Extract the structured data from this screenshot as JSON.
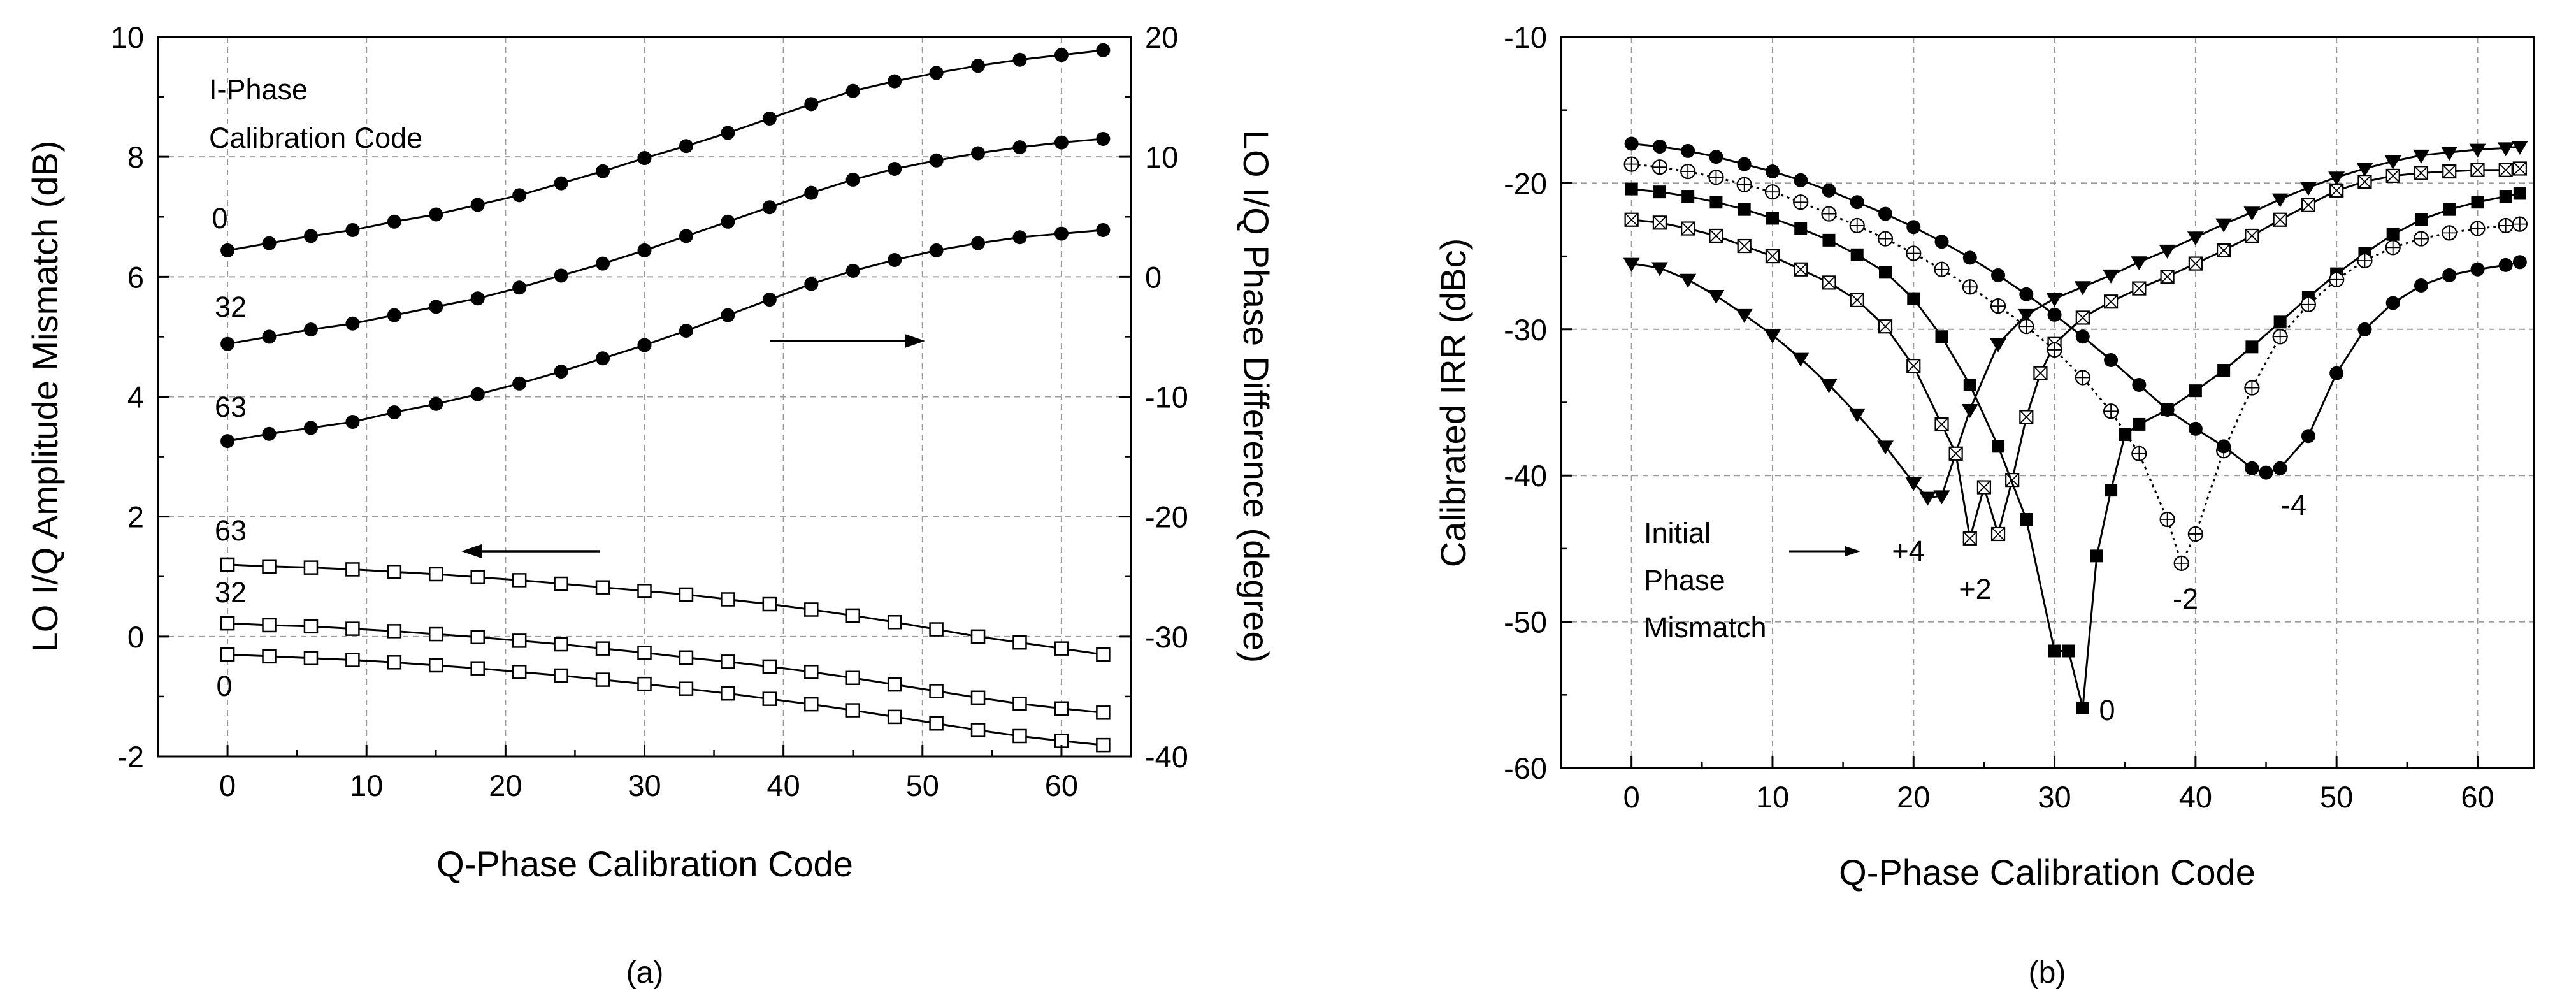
{
  "chart_data": [
    {
      "panel": "a",
      "caption": "(a)",
      "type": "line",
      "xlabel": "Q-Phase Calibration Code",
      "ylabel": "LO I/Q Amplitude Mismatch (dB)",
      "y2label": "LO I/Q Phase Difference (degree)",
      "xlim": [
        -5,
        65
      ],
      "ylim": [
        -2,
        10
      ],
      "y2lim": [
        -40,
        20
      ],
      "xticks": [
        "0",
        "10",
        "20",
        "30",
        "40",
        "50",
        "60"
      ],
      "yticks": [
        "-2",
        "0",
        "2",
        "4",
        "6",
        "8",
        "10"
      ],
      "y2ticks": [
        "-40",
        "-30",
        "-20",
        "-10",
        "0",
        "10",
        "20"
      ],
      "grid": true,
      "annotations": {
        "legend_line1": "I-Phase",
        "legend_line2": "Calibration Code",
        "phase_0": "0",
        "phase_32": "32",
        "phase_63": "63",
        "amp_63": "63",
        "amp_32": "32",
        "amp_0": "0"
      },
      "x": [
        0,
        3,
        6,
        9,
        12,
        15,
        18,
        21,
        24,
        27,
        30,
        33,
        36,
        39,
        42,
        45,
        48,
        51,
        54,
        57,
        60,
        63
      ],
      "series": [
        {
          "name": "Phase difference, I code 0",
          "axis": "right",
          "marker": "filled-circle",
          "values": [
            2.2,
            2.8,
            3.4,
            3.9,
            4.6,
            5.2,
            6.0,
            6.8,
            7.8,
            8.8,
            9.9,
            10.9,
            12.0,
            13.2,
            14.4,
            15.5,
            16.3,
            17.0,
            17.6,
            18.1,
            18.5,
            18.9
          ]
        },
        {
          "name": "Phase difference, I code 32",
          "axis": "right",
          "marker": "filled-circle",
          "values": [
            -5.6,
            -5.0,
            -4.4,
            -3.9,
            -3.2,
            -2.5,
            -1.8,
            -0.9,
            0.1,
            1.1,
            2.2,
            3.4,
            4.6,
            5.8,
            7.0,
            8.1,
            9.0,
            9.7,
            10.3,
            10.8,
            11.2,
            11.5
          ]
        },
        {
          "name": "Phase difference, I code 63",
          "axis": "right",
          "marker": "filled-circle",
          "values": [
            -13.7,
            -13.1,
            -12.6,
            -12.1,
            -11.3,
            -10.6,
            -9.8,
            -8.9,
            -7.9,
            -6.8,
            -5.7,
            -4.5,
            -3.2,
            -1.9,
            -0.6,
            0.5,
            1.4,
            2.2,
            2.8,
            3.3,
            3.6,
            3.9
          ]
        },
        {
          "name": "Amplitude mismatch, I code 63",
          "axis": "left",
          "marker": "open-square",
          "values": [
            1.2,
            1.17,
            1.15,
            1.12,
            1.08,
            1.04,
            0.99,
            0.94,
            0.88,
            0.82,
            0.76,
            0.7,
            0.62,
            0.54,
            0.45,
            0.35,
            0.24,
            0.12,
            0.0,
            -0.1,
            -0.2,
            -0.3
          ]
        },
        {
          "name": "Amplitude mismatch, I code 32",
          "axis": "left",
          "marker": "open-square",
          "values": [
            0.22,
            0.19,
            0.17,
            0.13,
            0.09,
            0.04,
            -0.01,
            -0.07,
            -0.13,
            -0.2,
            -0.27,
            -0.35,
            -0.42,
            -0.5,
            -0.59,
            -0.69,
            -0.8,
            -0.91,
            -1.02,
            -1.12,
            -1.2,
            -1.27
          ]
        },
        {
          "name": "Amplitude mismatch, I code 0",
          "axis": "left",
          "marker": "open-square",
          "values": [
            -0.3,
            -0.33,
            -0.36,
            -0.39,
            -0.43,
            -0.48,
            -0.53,
            -0.59,
            -0.65,
            -0.72,
            -0.79,
            -0.87,
            -0.95,
            -1.04,
            -1.13,
            -1.23,
            -1.34,
            -1.45,
            -1.56,
            -1.66,
            -1.74,
            -1.81
          ]
        }
      ]
    },
    {
      "panel": "b",
      "caption": "(b)",
      "type": "line",
      "xlabel": "Q-Phase Calibration Code",
      "ylabel": "Calibrated IRR (dBc)",
      "xlim": [
        -5,
        64
      ],
      "ylim": [
        -60,
        -10
      ],
      "xticks": [
        "0",
        "10",
        "20",
        "30",
        "40",
        "50",
        "60"
      ],
      "yticks": [
        "-60",
        "-50",
        "-40",
        "-30",
        "-20",
        "-10"
      ],
      "grid": true,
      "annotations": {
        "initial_line1": "Initial",
        "initial_line2": "Phase",
        "initial_line3": "Mismatch",
        "p4": "+4",
        "p2": "+2",
        "z0": "0",
        "m2": "-2",
        "m4": "-4"
      },
      "series": [
        {
          "name": "+4",
          "marker": "filled-triangle-down",
          "line": "solid",
          "x": [
            0,
            2,
            4,
            6,
            8,
            10,
            12,
            14,
            16,
            18,
            20,
            21,
            22,
            24,
            26,
            28,
            30,
            32,
            34,
            36,
            38,
            40,
            42,
            44,
            46,
            48,
            50,
            52,
            54,
            56,
            58,
            60,
            62,
            63
          ],
          "values": [
            -25.5,
            -25.8,
            -26.6,
            -27.7,
            -29.0,
            -30.4,
            -32.0,
            -33.8,
            -35.8,
            -38.0,
            -40.5,
            -41.5,
            -41.4,
            -35.5,
            -31.0,
            -29.0,
            -27.9,
            -27.1,
            -26.3,
            -25.4,
            -24.6,
            -23.7,
            -22.8,
            -22.0,
            -21.1,
            -20.3,
            -19.6,
            -19.0,
            -18.5,
            -18.1,
            -17.9,
            -17.7,
            -17.6,
            -17.5
          ]
        },
        {
          "name": "+2",
          "marker": "crossed-square",
          "line": "solid",
          "x": [
            0,
            2,
            4,
            6,
            8,
            10,
            12,
            14,
            16,
            18,
            20,
            22,
            23,
            24,
            25,
            26,
            27,
            28,
            29,
            30,
            32,
            34,
            36,
            38,
            40,
            42,
            44,
            46,
            48,
            50,
            52,
            54,
            56,
            58,
            60,
            62,
            63
          ],
          "values": [
            -22.5,
            -22.7,
            -23.1,
            -23.6,
            -24.3,
            -25.0,
            -25.9,
            -26.8,
            -28.0,
            -29.8,
            -32.5,
            -36.5,
            -38.5,
            -44.3,
            -40.8,
            -44.0,
            -40.3,
            -36.0,
            -33.0,
            -31.0,
            -29.2,
            -28.1,
            -27.2,
            -26.4,
            -25.5,
            -24.6,
            -23.6,
            -22.5,
            -21.5,
            -20.5,
            -19.9,
            -19.5,
            -19.3,
            -19.2,
            -19.1,
            -19.1,
            -19.0
          ]
        },
        {
          "name": "0",
          "marker": "filled-square",
          "line": "solid",
          "x": [
            0,
            2,
            4,
            6,
            8,
            10,
            12,
            14,
            16,
            18,
            20,
            22,
            24,
            26,
            28,
            30,
            31,
            32,
            33,
            34,
            35,
            36,
            38,
            40,
            42,
            44,
            46,
            48,
            50,
            52,
            54,
            56,
            58,
            60,
            62,
            63
          ],
          "values": [
            -20.4,
            -20.6,
            -20.9,
            -21.3,
            -21.8,
            -22.4,
            -23.1,
            -23.9,
            -24.9,
            -26.1,
            -27.9,
            -30.5,
            -33.8,
            -38.0,
            -43.0,
            -52.0,
            -52.0,
            -55.9,
            -45.5,
            -41.0,
            -37.2,
            -36.5,
            -35.5,
            -34.2,
            -32.8,
            -31.2,
            -29.5,
            -27.8,
            -26.2,
            -24.8,
            -23.5,
            -22.5,
            -21.8,
            -21.3,
            -20.9,
            -20.7
          ]
        },
        {
          "name": "-2",
          "marker": "crossed-circle",
          "line": "dotted",
          "x": [
            0,
            2,
            4,
            6,
            8,
            10,
            12,
            14,
            16,
            18,
            20,
            22,
            24,
            26,
            28,
            30,
            32,
            34,
            36,
            38,
            39,
            40,
            42,
            44,
            46,
            48,
            50,
            52,
            54,
            56,
            58,
            60,
            62,
            63
          ],
          "values": [
            -18.7,
            -18.9,
            -19.2,
            -19.6,
            -20.1,
            -20.6,
            -21.3,
            -22.1,
            -22.9,
            -23.8,
            -24.8,
            -25.9,
            -27.1,
            -28.4,
            -29.8,
            -31.4,
            -33.3,
            -35.6,
            -38.5,
            -43.0,
            -46.0,
            -44.0,
            -38.3,
            -34.0,
            -30.5,
            -28.3,
            -26.6,
            -25.3,
            -24.4,
            -23.8,
            -23.4,
            -23.1,
            -22.9,
            -22.8
          ]
        },
        {
          "name": "-4",
          "marker": "filled-circle",
          "line": "solid",
          "x": [
            0,
            2,
            4,
            6,
            8,
            10,
            12,
            14,
            16,
            18,
            20,
            22,
            24,
            26,
            28,
            30,
            32,
            34,
            36,
            38,
            40,
            42,
            44,
            45,
            46,
            48,
            50,
            52,
            54,
            56,
            58,
            60,
            62,
            63
          ],
          "values": [
            -17.3,
            -17.5,
            -17.8,
            -18.2,
            -18.7,
            -19.2,
            -19.8,
            -20.5,
            -21.3,
            -22.1,
            -23.0,
            -24.0,
            -25.1,
            -26.3,
            -27.6,
            -29.0,
            -30.5,
            -32.1,
            -33.8,
            -35.5,
            -36.8,
            -38.0,
            -39.5,
            -39.8,
            -39.5,
            -37.3,
            -33.0,
            -30.0,
            -28.2,
            -27.0,
            -26.3,
            -25.9,
            -25.6,
            -25.4
          ]
        }
      ]
    }
  ]
}
